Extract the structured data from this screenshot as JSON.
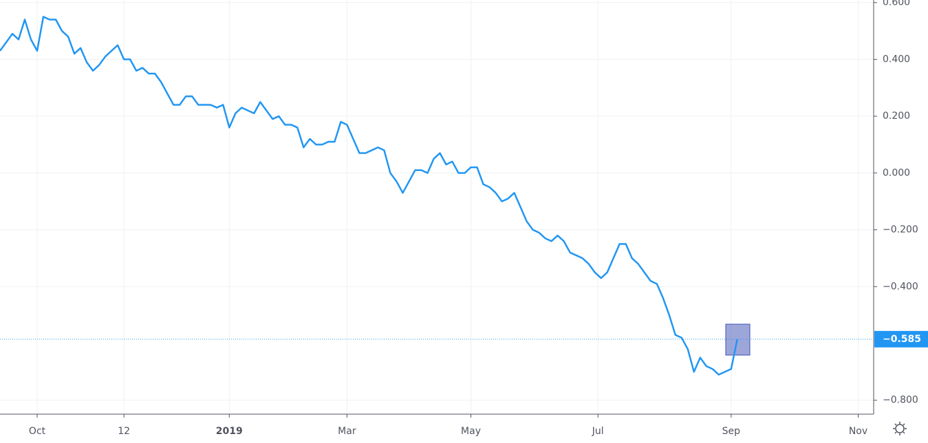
{
  "chart_data": {
    "type": "line",
    "x": [
      0,
      2,
      4,
      6,
      8,
      10,
      12,
      14,
      16,
      18,
      20,
      22,
      24,
      26,
      28,
      30,
      32,
      34,
      36,
      38,
      40,
      42,
      44,
      46,
      48,
      50,
      52,
      54,
      56,
      58,
      60,
      62,
      64,
      66,
      68,
      70,
      72,
      74,
      76,
      78,
      80,
      82,
      84,
      86,
      88,
      90,
      92,
      94,
      96,
      98,
      100,
      102,
      104,
      106,
      108,
      110,
      112,
      114,
      116,
      118,
      120,
      122,
      124,
      126,
      128,
      130,
      132,
      134,
      136,
      138,
      140,
      142,
      144,
      146,
      148,
      150,
      152,
      154,
      156,
      158,
      160,
      162,
      164,
      166,
      168,
      170,
      172,
      174,
      176,
      178,
      180,
      182,
      184,
      186,
      188,
      190,
      192,
      194,
      196,
      198,
      200,
      202,
      204,
      206,
      208,
      210,
      212,
      214,
      216,
      218,
      220,
      222,
      224,
      226,
      228,
      230,
      232,
      234,
      236,
      238
    ],
    "series": [
      {
        "color": "#2196f3",
        "values": [
          0.43,
          0.46,
          0.49,
          0.47,
          0.54,
          0.47,
          0.43,
          0.55,
          0.54,
          0.54,
          0.5,
          0.48,
          0.42,
          0.44,
          0.39,
          0.36,
          0.38,
          0.41,
          0.43,
          0.45,
          0.4,
          0.4,
          0.36,
          0.37,
          0.35,
          0.35,
          0.32,
          0.28,
          0.24,
          0.24,
          0.27,
          0.27,
          0.24,
          0.24,
          0.24,
          0.23,
          0.24,
          0.16,
          0.21,
          0.23,
          0.22,
          0.21,
          0.25,
          0.22,
          0.19,
          0.2,
          0.17,
          0.17,
          0.16,
          0.09,
          0.12,
          0.1,
          0.1,
          0.11,
          0.11,
          0.18,
          0.17,
          0.12,
          0.07,
          0.07,
          0.08,
          0.09,
          0.08,
          0.0,
          -0.03,
          -0.07,
          -0.03,
          0.01,
          0.01,
          0.0,
          0.05,
          0.07,
          0.03,
          0.04,
          0.0,
          0.0,
          0.02,
          0.02,
          -0.04,
          -0.05,
          -0.07,
          -0.1,
          -0.09,
          -0.07,
          -0.12,
          -0.17,
          -0.2,
          -0.21,
          -0.23,
          -0.24,
          -0.22,
          -0.24,
          -0.28,
          -0.29,
          -0.3,
          -0.32,
          -0.35,
          -0.37,
          -0.35,
          -0.3,
          -0.25,
          -0.25,
          -0.3,
          -0.32,
          -0.35,
          -0.38,
          -0.39,
          -0.44,
          -0.5,
          -0.57,
          -0.58,
          -0.62,
          -0.7,
          -0.65,
          -0.68,
          -0.69,
          -0.71,
          -0.7,
          -0.69,
          -0.585
        ]
      }
    ],
    "last_price": {
      "value": -0.585,
      "label": "−0.585"
    },
    "xlim": [
      0,
      282
    ],
    "xticks": [
      {
        "value": 12,
        "label": "Oct"
      },
      {
        "value": 40,
        "label": "12"
      },
      {
        "value": 74,
        "label": "2019"
      },
      {
        "value": 112,
        "label": "Mar"
      },
      {
        "value": 152,
        "label": "May"
      },
      {
        "value": 193,
        "label": "Jul"
      },
      {
        "value": 236,
        "label": "Sep"
      },
      {
        "value": 277,
        "label": "Nov"
      }
    ],
    "ylim": [
      -0.849,
      0.609
    ],
    "yticks": [
      {
        "value": 0.6,
        "label": "0.600"
      },
      {
        "value": 0.4,
        "label": "0.400"
      },
      {
        "value": 0.2,
        "label": "0.200"
      },
      {
        "value": 0,
        "label": "0.000"
      },
      {
        "value": -0.2,
        "label": "−0.200"
      },
      {
        "value": -0.4,
        "label": "−0.400"
      },
      {
        "value": -0.8,
        "label": "−0.800"
      }
    ],
    "grid": true
  }
}
